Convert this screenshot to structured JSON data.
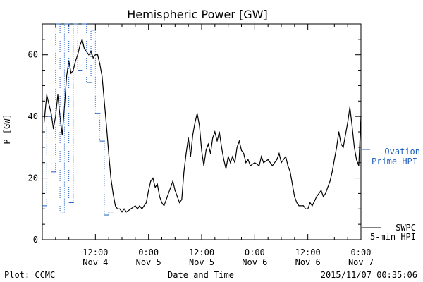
{
  "chart_data": {
    "type": "line",
    "title": "Hemispheric Power [GW]",
    "xlabel": "Date and Time",
    "ylabel": "P [GW]",
    "ylim": [
      0,
      70
    ],
    "xlim_hours": [
      0,
      72
    ],
    "grid": false,
    "y_ticks": [
      0,
      20,
      40,
      60
    ],
    "x_ticks": [
      {
        "t": 12,
        "line1": "12:00",
        "line2": "Nov 4"
      },
      {
        "t": 24,
        "line1": "0:00",
        "line2": "Nov 5"
      },
      {
        "t": 36,
        "line1": "12:00",
        "line2": "Nov 5"
      },
      {
        "t": 48,
        "line1": "0:00",
        "line2": "Nov 6"
      },
      {
        "t": 60,
        "line1": "12:00",
        "line2": "Nov 6"
      },
      {
        "t": 72,
        "line1": "0:00",
        "line2": "Nov 7"
      }
    ],
    "series": [
      {
        "name": "SWPC 5-min HPI",
        "color": "#000000",
        "style": "solid",
        "points": [
          [
            0.4,
            38
          ],
          [
            1.0,
            47
          ],
          [
            1.5,
            44
          ],
          [
            2.0,
            41
          ],
          [
            2.5,
            36
          ],
          [
            3.0,
            40
          ],
          [
            3.5,
            47
          ],
          [
            4.0,
            40
          ],
          [
            4.5,
            34
          ],
          [
            5.0,
            43
          ],
          [
            5.5,
            53
          ],
          [
            6.0,
            58
          ],
          [
            6.5,
            54
          ],
          [
            7.0,
            55
          ],
          [
            7.5,
            58
          ],
          [
            8.0,
            60
          ],
          [
            8.5,
            63
          ],
          [
            9.0,
            65
          ],
          [
            9.5,
            62
          ],
          [
            10.0,
            61
          ],
          [
            10.5,
            60
          ],
          [
            11.0,
            61
          ],
          [
            11.5,
            59
          ],
          [
            12.0,
            60
          ],
          [
            12.5,
            60
          ],
          [
            13.0,
            57
          ],
          [
            13.5,
            53
          ],
          [
            14.0,
            45
          ],
          [
            14.5,
            37
          ],
          [
            15.0,
            28
          ],
          [
            15.5,
            20
          ],
          [
            16.0,
            15
          ],
          [
            16.5,
            11
          ],
          [
            17.0,
            10
          ],
          [
            17.5,
            10
          ],
          [
            18.0,
            9
          ],
          [
            18.5,
            10
          ],
          [
            19.0,
            9
          ],
          [
            20.0,
            10
          ],
          [
            21.0,
            11
          ],
          [
            21.5,
            10
          ],
          [
            22.0,
            11
          ],
          [
            22.5,
            10
          ],
          [
            23.0,
            11
          ],
          [
            23.5,
            12
          ],
          [
            24.0,
            16
          ],
          [
            24.5,
            19
          ],
          [
            25.0,
            20
          ],
          [
            25.5,
            17
          ],
          [
            26.0,
            18
          ],
          [
            26.5,
            14
          ],
          [
            27.0,
            12
          ],
          [
            27.5,
            11
          ],
          [
            28.0,
            13
          ],
          [
            28.5,
            15
          ],
          [
            29.0,
            17
          ],
          [
            29.5,
            19
          ],
          [
            30.0,
            16
          ],
          [
            30.5,
            14
          ],
          [
            31.0,
            12
          ],
          [
            31.5,
            13
          ],
          [
            32.0,
            22
          ],
          [
            32.5,
            28
          ],
          [
            33.0,
            33
          ],
          [
            33.5,
            27
          ],
          [
            34.0,
            34
          ],
          [
            34.5,
            38
          ],
          [
            35.0,
            41
          ],
          [
            35.5,
            37
          ],
          [
            36.0,
            29
          ],
          [
            36.5,
            24
          ],
          [
            37.0,
            29
          ],
          [
            37.5,
            31
          ],
          [
            38.0,
            28
          ],
          [
            38.5,
            33
          ],
          [
            39.0,
            35
          ],
          [
            39.5,
            32
          ],
          [
            40.0,
            35
          ],
          [
            40.5,
            30
          ],
          [
            41.0,
            26
          ],
          [
            41.5,
            23
          ],
          [
            42.0,
            27
          ],
          [
            42.5,
            25
          ],
          [
            43.0,
            27
          ],
          [
            43.5,
            25
          ],
          [
            44.0,
            30
          ],
          [
            44.5,
            32
          ],
          [
            45.0,
            29
          ],
          [
            45.5,
            28
          ],
          [
            46.0,
            25
          ],
          [
            46.5,
            26
          ],
          [
            47.0,
            24
          ],
          [
            48.0,
            25
          ],
          [
            49.0,
            24
          ],
          [
            49.5,
            27
          ],
          [
            50.0,
            25
          ],
          [
            51.0,
            26
          ],
          [
            52.0,
            24
          ],
          [
            53.0,
            26
          ],
          [
            53.5,
            28
          ],
          [
            54.0,
            25
          ],
          [
            54.5,
            26
          ],
          [
            55.0,
            27
          ],
          [
            55.5,
            24
          ],
          [
            56.0,
            22
          ],
          [
            56.5,
            18
          ],
          [
            57.0,
            14
          ],
          [
            57.5,
            12
          ],
          [
            58.0,
            11
          ],
          [
            59.0,
            11
          ],
          [
            59.5,
            10
          ],
          [
            60.0,
            10
          ],
          [
            60.5,
            12
          ],
          [
            61.0,
            11
          ],
          [
            62.0,
            14
          ],
          [
            63.0,
            16
          ],
          [
            63.5,
            14
          ],
          [
            64.0,
            15
          ],
          [
            64.5,
            17
          ],
          [
            65.0,
            19
          ],
          [
            65.5,
            22
          ],
          [
            66.0,
            26
          ],
          [
            66.5,
            30
          ],
          [
            67.0,
            35
          ],
          [
            67.5,
            31
          ],
          [
            68.0,
            30
          ],
          [
            68.5,
            34
          ],
          [
            69.0,
            38
          ],
          [
            69.5,
            43
          ],
          [
            70.0,
            37
          ],
          [
            70.5,
            30
          ],
          [
            71.0,
            26
          ],
          [
            71.5,
            24
          ],
          [
            72.0,
            40
          ]
        ]
      },
      {
        "name": "Ovation Prime HPI",
        "color": "#1f5fbf",
        "style": "dotted-step",
        "points": [
          [
            0.0,
            11
          ],
          [
            1.0,
            40
          ],
          [
            2.0,
            22
          ],
          [
            3.0,
            70
          ],
          [
            4.0,
            9
          ],
          [
            5.0,
            70
          ],
          [
            6.0,
            12
          ],
          [
            7.0,
            70
          ],
          [
            8.0,
            55
          ],
          [
            9.0,
            70
          ],
          [
            10.0,
            51
          ],
          [
            11.0,
            68
          ],
          [
            12.0,
            41
          ],
          [
            13.0,
            32
          ],
          [
            14.0,
            8
          ],
          [
            15.0,
            9
          ]
        ]
      }
    ],
    "legend": {
      "placement": "right",
      "entries": [
        {
          "line1": "- Ovation",
          "line2": "Prime HPI",
          "color": "#1f5fbf"
        },
        {
          "line1": "SWPC",
          "line2": "5-min HPI",
          "color": "#000000"
        }
      ]
    },
    "footer": {
      "left": "Plot: CCMC",
      "center": "Date and Time",
      "right": "2015/11/07 00:35:06"
    }
  }
}
